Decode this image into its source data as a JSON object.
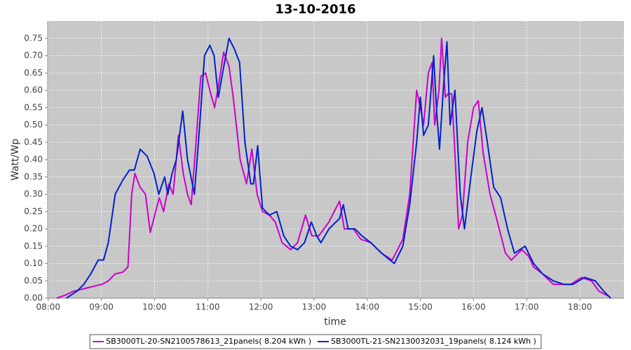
{
  "chart_data": {
    "type": "line",
    "title": "13-10-2016",
    "x_label": "time",
    "y_label": "Watt/Wp",
    "xlim": [
      7.99,
      18.83
    ],
    "ylim": [
      0,
      0.8
    ],
    "grid": true,
    "legend": "bottom",
    "xticks": [
      {
        "value": 8,
        "label": "08:00"
      },
      {
        "value": 9,
        "label": "09:00"
      },
      {
        "value": 10,
        "label": "10:00"
      },
      {
        "value": 11,
        "label": "11:00"
      },
      {
        "value": 12,
        "label": "12:00"
      },
      {
        "value": 13,
        "label": "13:00"
      },
      {
        "value": 14,
        "label": "14:00"
      },
      {
        "value": 15,
        "label": "15:00"
      },
      {
        "value": 16,
        "label": "16:00"
      },
      {
        "value": 17,
        "label": "17:00"
      },
      {
        "value": 18,
        "label": "18:00"
      }
    ],
    "yticks": [
      {
        "value": 0,
        "label": "0.00"
      },
      {
        "value": 0.05,
        "label": "0.05"
      },
      {
        "value": 0.1,
        "label": "0.10"
      },
      {
        "value": 0.15,
        "label": "0.15"
      },
      {
        "value": 0.2,
        "label": "0.20"
      },
      {
        "value": 0.25,
        "label": "0.25"
      },
      {
        "value": 0.3,
        "label": "0.30"
      },
      {
        "value": 0.35,
        "label": "0.35"
      },
      {
        "value": 0.4,
        "label": "0.40"
      },
      {
        "value": 0.45,
        "label": "0.45"
      },
      {
        "value": 0.5,
        "label": "0.50"
      },
      {
        "value": 0.55,
        "label": "0.55"
      },
      {
        "value": 0.6,
        "label": "0.60"
      },
      {
        "value": 0.65,
        "label": "0.65"
      },
      {
        "value": 0.7,
        "label": "0.70"
      },
      {
        "value": 0.75,
        "label": "0.75"
      }
    ],
    "series": [
      {
        "name": "SB3000TL-20-SN2100578613_21panels( 8.204 kWh )",
        "color": "#cc00cc",
        "x": [
          8.16,
          8.34,
          8.47,
          8.61,
          8.74,
          8.87,
          9.01,
          9.13,
          9.26,
          9.4,
          9.5,
          9.57,
          9.63,
          9.73,
          9.83,
          9.92,
          10.02,
          10.09,
          10.17,
          10.27,
          10.35,
          10.45,
          10.54,
          10.62,
          10.69,
          10.78,
          10.87,
          10.96,
          11.04,
          11.13,
          11.21,
          11.3,
          11.4,
          11.48,
          11.61,
          11.73,
          11.83,
          11.93,
          12.03,
          12.16,
          12.27,
          12.4,
          12.56,
          12.69,
          12.84,
          12.96,
          13.09,
          13.28,
          13.48,
          13.57,
          13.74,
          13.88,
          14.07,
          14.27,
          14.47,
          14.67,
          14.8,
          14.93,
          15.0,
          15.06,
          15.15,
          15.22,
          15.27,
          15.35,
          15.4,
          15.47,
          15.52,
          15.59,
          15.64,
          15.72,
          15.79,
          15.89,
          16.0,
          16.09,
          16.18,
          16.31,
          16.45,
          16.6,
          16.71,
          16.91,
          17.04,
          17.13,
          17.3,
          17.5,
          17.7,
          17.83,
          18.03,
          18.22,
          18.36,
          18.55
        ],
        "values": [
          0.0,
          0.01,
          0.02,
          0.025,
          0.03,
          0.035,
          0.04,
          0.05,
          0.07,
          0.075,
          0.09,
          0.3,
          0.36,
          0.32,
          0.3,
          0.19,
          0.25,
          0.29,
          0.25,
          0.33,
          0.3,
          0.47,
          0.36,
          0.3,
          0.27,
          0.45,
          0.64,
          0.65,
          0.6,
          0.55,
          0.62,
          0.71,
          0.67,
          0.58,
          0.4,
          0.33,
          0.43,
          0.3,
          0.25,
          0.24,
          0.22,
          0.16,
          0.14,
          0.16,
          0.24,
          0.18,
          0.18,
          0.22,
          0.28,
          0.2,
          0.2,
          0.17,
          0.16,
          0.13,
          0.11,
          0.17,
          0.3,
          0.6,
          0.55,
          0.5,
          0.65,
          0.68,
          0.5,
          0.6,
          0.75,
          0.58,
          0.59,
          0.59,
          0.45,
          0.2,
          0.24,
          0.45,
          0.55,
          0.57,
          0.42,
          0.3,
          0.22,
          0.13,
          0.11,
          0.14,
          0.12,
          0.09,
          0.07,
          0.04,
          0.04,
          0.04,
          0.06,
          0.05,
          0.02,
          0.005
        ]
      },
      {
        "name": "SB3000TL-21-SN2130032031_19panels( 8.124 kWh )",
        "color": "#0022cc",
        "x": [
          8.34,
          8.54,
          8.67,
          8.8,
          8.94,
          9.04,
          9.13,
          9.26,
          9.4,
          9.53,
          9.62,
          9.73,
          9.86,
          9.99,
          10.08,
          10.19,
          10.25,
          10.33,
          10.41,
          10.53,
          10.62,
          10.75,
          10.85,
          10.94,
          11.04,
          11.12,
          11.2,
          11.28,
          11.4,
          11.5,
          11.6,
          11.7,
          11.81,
          11.86,
          11.94,
          12.03,
          12.16,
          12.3,
          12.43,
          12.56,
          12.69,
          12.82,
          12.95,
          13.05,
          13.13,
          13.28,
          13.48,
          13.55,
          13.64,
          13.77,
          13.9,
          14.07,
          14.27,
          14.51,
          14.67,
          14.8,
          14.93,
          15.0,
          15.06,
          15.15,
          15.25,
          15.31,
          15.36,
          15.43,
          15.5,
          15.56,
          15.65,
          15.75,
          15.83,
          15.95,
          16.06,
          16.16,
          16.25,
          16.38,
          16.51,
          16.64,
          16.77,
          16.97,
          17.13,
          17.3,
          17.5,
          17.7,
          17.87,
          18.09,
          18.29,
          18.45,
          18.58
        ],
        "values": [
          0.0,
          0.02,
          0.04,
          0.07,
          0.11,
          0.11,
          0.16,
          0.3,
          0.34,
          0.37,
          0.37,
          0.43,
          0.41,
          0.36,
          0.3,
          0.35,
          0.3,
          0.36,
          0.4,
          0.54,
          0.4,
          0.3,
          0.5,
          0.7,
          0.73,
          0.7,
          0.58,
          0.65,
          0.75,
          0.72,
          0.68,
          0.45,
          0.33,
          0.33,
          0.44,
          0.26,
          0.24,
          0.25,
          0.18,
          0.15,
          0.14,
          0.16,
          0.22,
          0.18,
          0.16,
          0.2,
          0.23,
          0.27,
          0.2,
          0.2,
          0.18,
          0.16,
          0.13,
          0.1,
          0.15,
          0.27,
          0.45,
          0.58,
          0.47,
          0.5,
          0.7,
          0.53,
          0.43,
          0.6,
          0.74,
          0.5,
          0.6,
          0.3,
          0.2,
          0.35,
          0.48,
          0.55,
          0.46,
          0.32,
          0.29,
          0.2,
          0.13,
          0.15,
          0.1,
          0.07,
          0.05,
          0.04,
          0.04,
          0.06,
          0.05,
          0.02,
          0.0
        ]
      }
    ]
  }
}
